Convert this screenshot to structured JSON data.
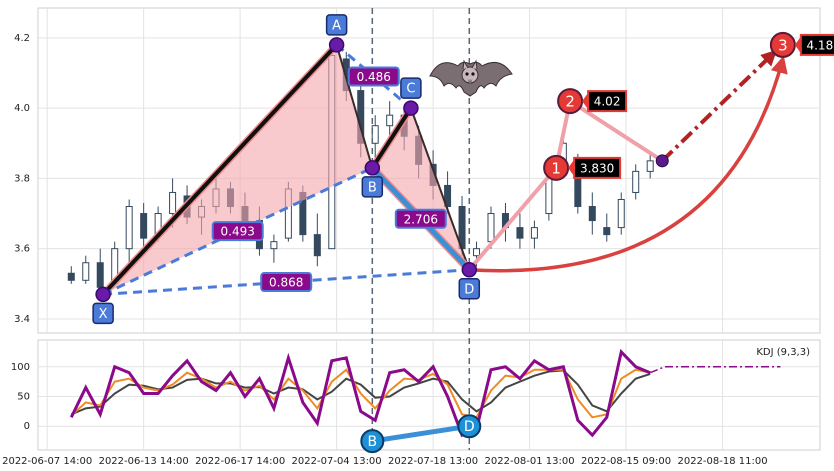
{
  "chart_data": [
    {
      "type": "candlestick",
      "xlim": [
        -1.9,
        160.2
      ],
      "ylim": [
        3.36,
        4.285
      ],
      "xticks": [
        {
          "value": 0,
          "label": "2022-06-07 14:00"
        },
        {
          "value": 20,
          "label": "2022-06-13 14:00"
        },
        {
          "value": 40,
          "label": "2022-06-17 14:00"
        },
        {
          "value": 60,
          "label": "2022-07-04 13:00"
        },
        {
          "value": 80,
          "label": "2022-07-18 13:00"
        },
        {
          "value": 100,
          "label": "2022-08-01 13:00"
        },
        {
          "value": 120,
          "label": "2022-08-15 09:00"
        },
        {
          "value": 140,
          "label": "2022-08-18 11:00"
        }
      ],
      "yticks": [
        3.4,
        3.6,
        3.8,
        {
          "value": 4,
          "label": "4.0"
        },
        4.2
      ],
      "grid": true,
      "up_color": "#ffffff",
      "down_color": "#34495e",
      "candles": {
        "x": [
          5,
          8,
          11,
          14,
          17,
          20,
          23,
          26,
          29,
          32,
          35,
          38,
          41,
          44,
          47,
          50,
          53,
          56,
          59,
          62,
          65,
          68,
          71,
          74,
          77,
          80,
          83,
          86,
          89,
          92,
          95,
          98,
          101,
          104,
          107,
          110,
          113,
          116,
          119,
          122,
          125
        ],
        "open": [
          3.53,
          3.51,
          3.56,
          3.5,
          3.6,
          3.7,
          3.64,
          3.7,
          3.75,
          3.69,
          3.72,
          3.77,
          3.72,
          3.68,
          3.6,
          3.63,
          3.76,
          3.64,
          3.6,
          4.14,
          4.05,
          3.9,
          3.95,
          3.98,
          3.92,
          3.84,
          3.78,
          3.72,
          3.58,
          3.62,
          3.7,
          3.66,
          3.63,
          3.7,
          3.82,
          3.85,
          3.72,
          3.66,
          3.66,
          3.76,
          3.82
        ],
        "high": [
          3.55,
          3.58,
          3.6,
          3.62,
          3.74,
          3.73,
          3.72,
          3.8,
          3.78,
          3.74,
          3.8,
          3.79,
          3.76,
          3.72,
          3.64,
          3.79,
          3.78,
          3.7,
          4.18,
          4.16,
          4.07,
          3.98,
          4.02,
          4.0,
          3.95,
          3.88,
          3.82,
          3.75,
          3.62,
          3.72,
          3.73,
          3.7,
          3.68,
          3.82,
          3.94,
          3.87,
          3.76,
          3.7,
          3.76,
          3.84,
          3.87
        ],
        "low": [
          3.5,
          3.5,
          3.47,
          3.49,
          3.55,
          3.6,
          3.62,
          3.66,
          3.67,
          3.64,
          3.7,
          3.7,
          3.66,
          3.58,
          3.56,
          3.62,
          3.62,
          3.55,
          3.6,
          4.02,
          3.86,
          3.82,
          3.9,
          3.88,
          3.8,
          3.74,
          3.7,
          3.58,
          3.55,
          3.6,
          3.62,
          3.6,
          3.6,
          3.68,
          3.8,
          3.7,
          3.64,
          3.62,
          3.64,
          3.74,
          3.8
        ],
        "close": [
          3.51,
          3.56,
          3.49,
          3.6,
          3.72,
          3.63,
          3.7,
          3.76,
          3.69,
          3.72,
          3.77,
          3.72,
          3.68,
          3.6,
          3.62,
          3.77,
          3.64,
          3.58,
          4.15,
          4.05,
          3.9,
          3.95,
          3.98,
          3.92,
          3.84,
          3.78,
          3.72,
          3.6,
          3.6,
          3.7,
          3.66,
          3.63,
          3.66,
          3.8,
          3.9,
          3.72,
          3.68,
          3.64,
          3.74,
          3.82,
          3.85
        ]
      },
      "pattern": {
        "fill_color": "#f4a6ad",
        "fills": [
          [
            "X",
            "A",
            "B"
          ],
          [
            "B",
            "C",
            "D"
          ]
        ],
        "points": [
          {
            "label": "X",
            "x": 11.6,
            "value": 3.47,
            "label_pos": "below"
          },
          {
            "label": "A",
            "x": 60,
            "value": 4.18,
            "label_pos": "above"
          },
          {
            "label": "B",
            "x": 67.4,
            "value": 3.83,
            "label_pos": "below"
          },
          {
            "label": "C",
            "x": 75.4,
            "value": 4.0,
            "label_pos": "above"
          },
          {
            "label": "D",
            "x": 87.5,
            "value": 3.54,
            "label_pos": "below"
          }
        ],
        "legs": [
          {
            "from": "X",
            "to": "A",
            "color": "#111111",
            "width": 4
          },
          {
            "from": "A",
            "to": "B",
            "color": "#3a2a2a",
            "width": 2
          },
          {
            "from": "B",
            "to": "C",
            "color": "#111111",
            "width": 4
          },
          {
            "from": "C",
            "to": "D",
            "color": "#3a2a2a",
            "width": 2
          },
          {
            "from": "X",
            "to": "B",
            "color": "#4a7bd8",
            "width": 3,
            "dashed": true,
            "ratio": 0.493
          },
          {
            "from": "A",
            "to": "C",
            "color": "#4a7bd8",
            "width": 3,
            "dashed": true,
            "ratio": 0.486
          },
          {
            "from": "X",
            "to": "D",
            "color": "#4a7bd8",
            "width": 3,
            "dashed": true,
            "ratio": 0.868
          },
          {
            "from": "B",
            "to": "D",
            "color": "#3a8fd6",
            "width": 5,
            "ratio": 2.706
          }
        ]
      },
      "targets": {
        "labels": [
          "1",
          "2",
          "3"
        ],
        "x": [
          105.5,
          108.4,
          152.5
        ],
        "values": [
          3.83,
          4.02,
          4.18
        ],
        "value_labels": [
          "3.830",
          "4.02",
          "4.18"
        ],
        "color": "#e53935"
      },
      "pivot": {
        "x": 127.5,
        "value": 3.85
      }
    },
    {
      "type": "line",
      "title": "KDJ (9,3,3)",
      "xlim": [
        -1.9,
        160.2
      ],
      "ylim": [
        -40,
        145
      ],
      "xticks": [
        {
          "value": 0,
          "label": "2022-06-07 14:00"
        },
        {
          "value": 20,
          "label": "2022-06-13 14:00"
        },
        {
          "value": 40,
          "label": "2022-06-17 14:00"
        },
        {
          "value": 60,
          "label": "2022-07-04 13:00"
        },
        {
          "value": 80,
          "label": "2022-07-18 13:00"
        },
        {
          "value": 100,
          "label": "2022-08-01 13:00"
        },
        {
          "value": 120,
          "label": "2022-08-15 09:00"
        },
        {
          "value": 140,
          "label": "2022-08-18 11:00"
        }
      ],
      "yticks": [
        0,
        50,
        100
      ],
      "grid": true,
      "x": [
        5,
        8,
        11,
        14,
        17,
        20,
        23,
        26,
        29,
        32,
        35,
        38,
        41,
        44,
        47,
        50,
        53,
        56,
        59,
        62,
        65,
        68,
        71,
        74,
        77,
        80,
        83,
        86,
        89,
        92,
        95,
        98,
        101,
        104,
        107,
        110,
        113,
        116,
        119,
        122,
        125
      ],
      "series": [
        {
          "color": "#444444",
          "width": 2,
          "values": [
            20,
            30,
            33,
            55,
            70,
            68,
            62,
            65,
            78,
            80,
            72,
            72,
            65,
            66,
            55,
            65,
            62,
            45,
            58,
            80,
            70,
            48,
            50,
            65,
            72,
            80,
            75,
            45,
            25,
            40,
            65,
            75,
            85,
            92,
            94,
            70,
            35,
            25,
            55,
            80,
            88
          ]
        },
        {
          "color": "#f08a24",
          "width": 2,
          "values": [
            18,
            40,
            35,
            75,
            80,
            65,
            60,
            70,
            90,
            80,
            65,
            75,
            60,
            68,
            45,
            80,
            60,
            30,
            75,
            95,
            55,
            30,
            60,
            80,
            78,
            88,
            70,
            20,
            15,
            60,
            85,
            82,
            95,
            95,
            95,
            45,
            15,
            20,
            80,
            95,
            90
          ]
        },
        {
          "color": "#8b0a8b",
          "width": 3,
          "values": [
            15,
            65,
            20,
            100,
            90,
            55,
            55,
            85,
            110,
            75,
            60,
            90,
            50,
            80,
            30,
            115,
            40,
            5,
            110,
            115,
            25,
            10,
            90,
            95,
            75,
            100,
            50,
            -15,
            -5,
            95,
            100,
            80,
            110,
            95,
            100,
            10,
            -15,
            15,
            125,
            100,
            90
          ]
        }
      ],
      "projection": {
        "x": [
          125,
          128,
          131,
          152
        ],
        "values": [
          90,
          100,
          100,
          100
        ],
        "color": "#8b0a8b"
      },
      "kdj_points": {
        "labels": [
          "B",
          "D"
        ],
        "x": [
          67.4,
          87.5
        ],
        "values": [
          -25,
          0
        ],
        "color": "#1e90d6"
      }
    }
  ]
}
